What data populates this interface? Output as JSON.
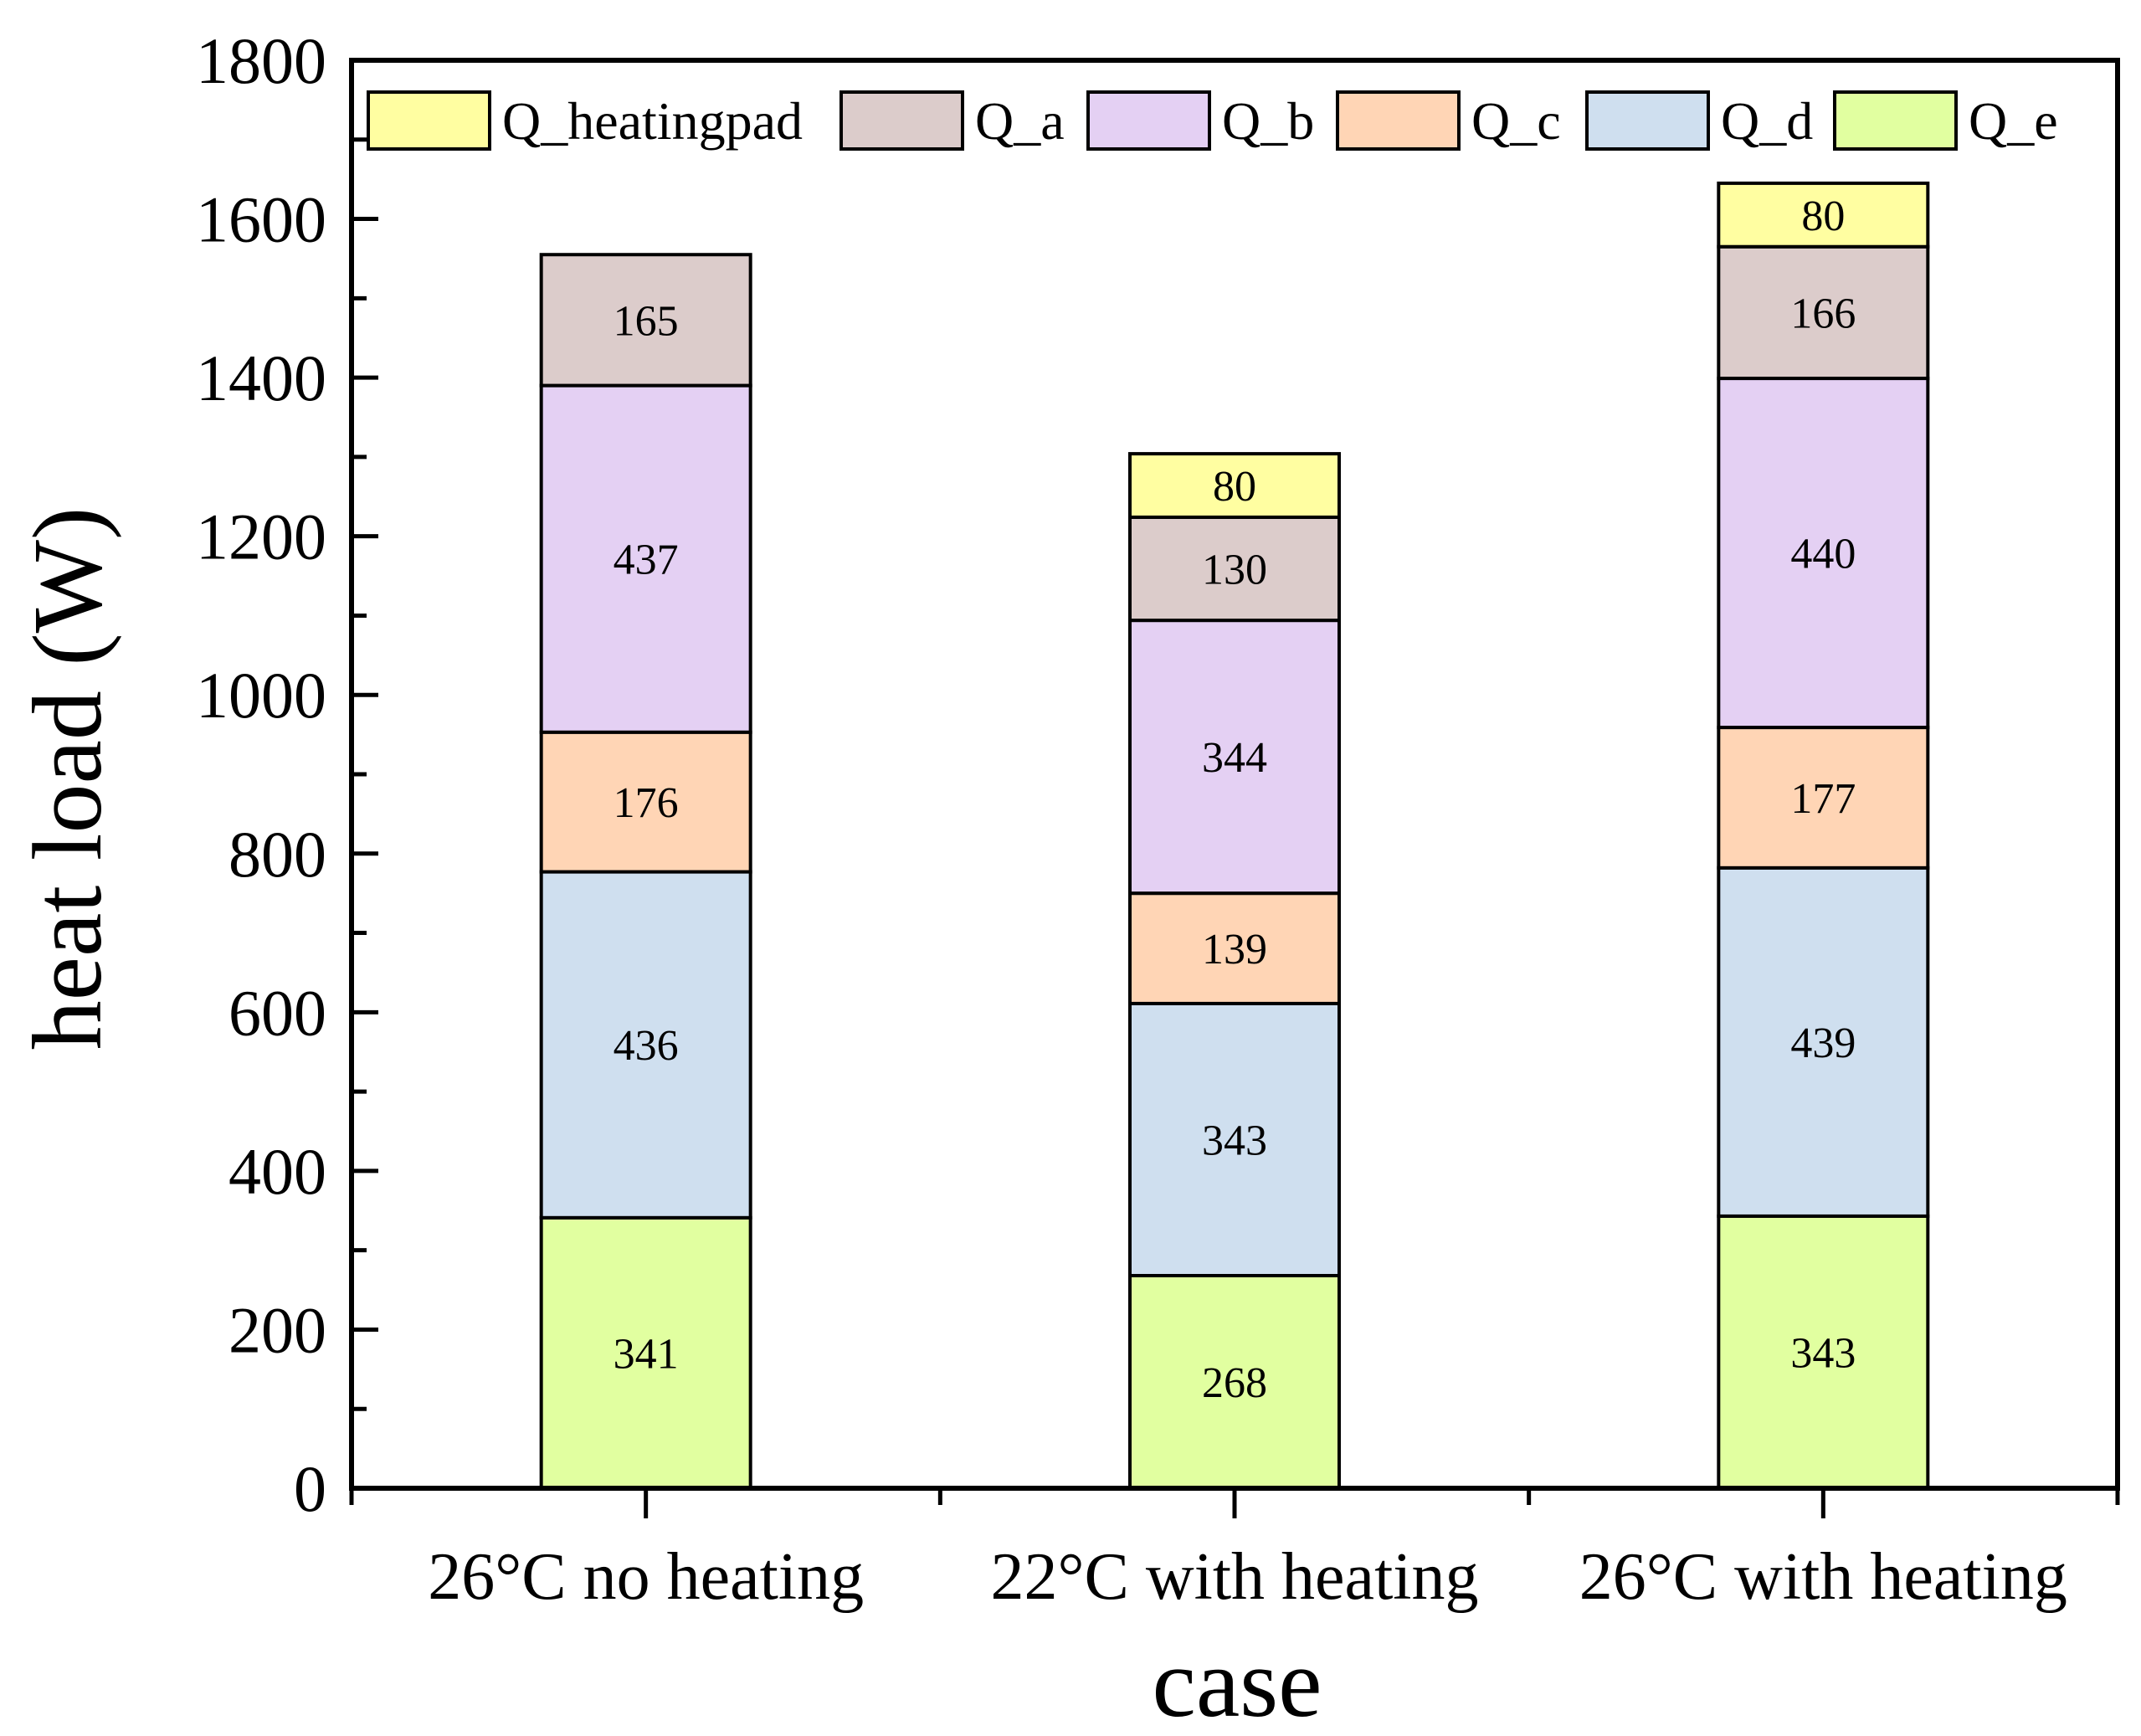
{
  "chart_data": {
    "type": "bar",
    "stacked": true,
    "title": "",
    "xlabel": "case",
    "ylabel": "heat load (W)",
    "ylim": [
      0,
      1800
    ],
    "yticks": [
      0,
      200,
      400,
      600,
      800,
      1000,
      1200,
      1400,
      1600,
      1800
    ],
    "categories": [
      "26°C no heating",
      "22°C with heating",
      "26°C with heating"
    ],
    "legend_position": "top",
    "series": [
      {
        "name": "Q_e",
        "color": "#e1ffa0",
        "values": [
          341,
          268,
          343
        ]
      },
      {
        "name": "Q_d",
        "color": "#cfdfef",
        "values": [
          436,
          343,
          439
        ]
      },
      {
        "name": "Q_c",
        "color": "#ffd5b5",
        "values": [
          176,
          139,
          177
        ]
      },
      {
        "name": "Q_b",
        "color": "#e4d0f3",
        "values": [
          437,
          344,
          440
        ]
      },
      {
        "name": "Q_a",
        "color": "#dccccb",
        "values": [
          165,
          130,
          166
        ]
      },
      {
        "name": "Q_heatingpad",
        "color": "#fffea1",
        "values": [
          null,
          80,
          80
        ]
      }
    ],
    "legend_order": [
      "Q_heatingpad",
      "Q_a",
      "Q_b",
      "Q_c",
      "Q_d",
      "Q_e"
    ]
  }
}
